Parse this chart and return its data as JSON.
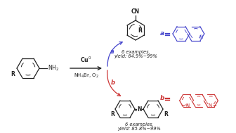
{
  "background_color": "#ffffff",
  "blue_color": "#4444cc",
  "red_color": "#cc3333",
  "black_color": "#222222",
  "fig_width": 3.36,
  "fig_height": 1.89,
  "dpi": 100,
  "product_a_text1": "6 examples,",
  "product_a_text2": "yield: 64.9%~99%",
  "product_b_text1": "6 examples,",
  "product_b_text2": "yield: 85.8%~99%",
  "label_a": "a",
  "label_b": "b",
  "reagent1": "Cu$^0$",
  "reagent2": "NH$_4$Br, O$_2$"
}
